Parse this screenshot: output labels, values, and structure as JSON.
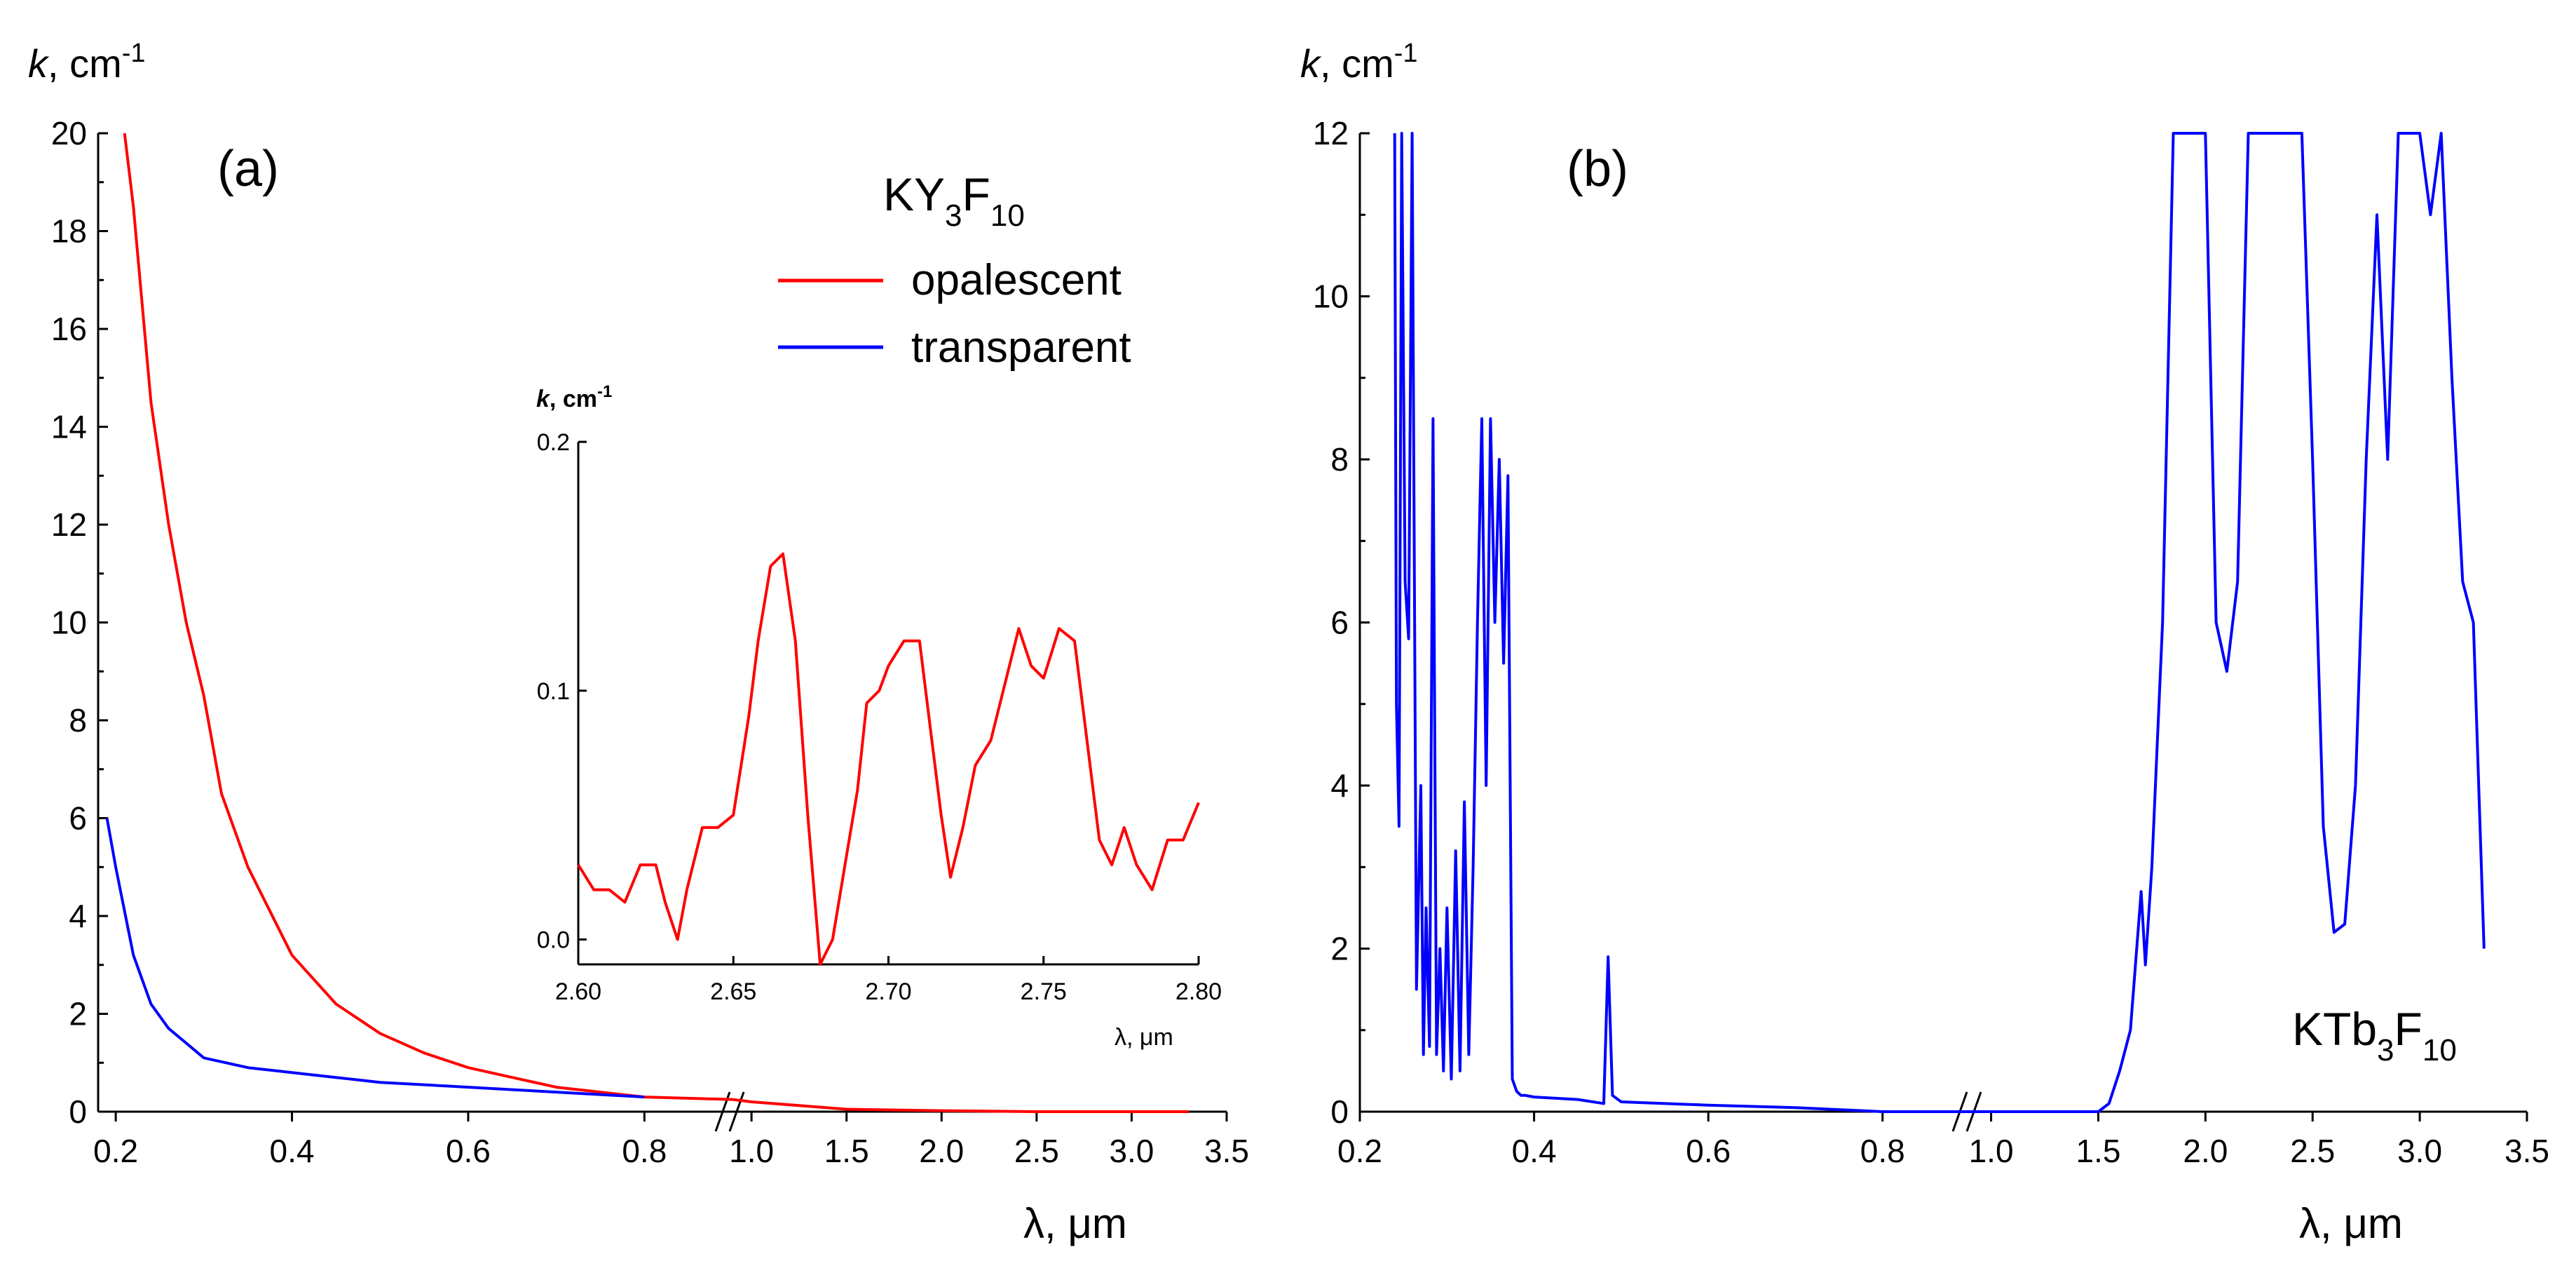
{
  "chart_data": [
    {
      "id": "a",
      "type": "line",
      "panel_label": "(a)",
      "title": "KY3F10",
      "title_parts": {
        "base": "KY",
        "sub1": "3",
        "mid": "F",
        "sub2": "10"
      },
      "xlabel": "λ, μm",
      "ylabel": {
        "var": "k",
        "unit": ", cm",
        "exp": "-1"
      },
      "ylim": [
        0,
        20
      ],
      "y_ticks": [
        "0",
        "2",
        "4",
        "6",
        "8",
        "10",
        "12",
        "14",
        "16",
        "18",
        "20"
      ],
      "broken_x_axis": true,
      "x_segments": [
        {
          "range": [
            0.18,
            0.9
          ],
          "ticks": [
            "0.2",
            "0.4",
            "0.6",
            "0.8"
          ]
        },
        {
          "range": [
            0.9,
            3.5
          ],
          "ticks": [
            "1.0",
            "1.5",
            "2.0",
            "2.5",
            "3.0",
            "3.5"
          ]
        }
      ],
      "legend_position": "top-right",
      "series": [
        {
          "name": "opalescent",
          "color": "#ff0000",
          "x": [
            0.21,
            0.22,
            0.24,
            0.26,
            0.28,
            0.3,
            0.32,
            0.35,
            0.4,
            0.45,
            0.5,
            0.55,
            0.6,
            0.65,
            0.7,
            0.75,
            0.8,
            0.9,
            1.0,
            1.5,
            2.0,
            2.5,
            3.0,
            3.3
          ],
          "y": [
            20,
            18.5,
            14.5,
            12.0,
            10.0,
            8.5,
            6.5,
            5.0,
            3.2,
            2.2,
            1.6,
            1.2,
            0.9,
            0.7,
            0.5,
            0.4,
            0.3,
            0.25,
            0.2,
            0.05,
            0.02,
            0.0,
            0.0,
            0.0
          ]
        },
        {
          "name": "transparent",
          "color": "#0000ff",
          "x": [
            0.19,
            0.2,
            0.22,
            0.24,
            0.26,
            0.28,
            0.3,
            0.35,
            0.4,
            0.45,
            0.5,
            0.55,
            0.6,
            0.65,
            0.7,
            0.75,
            0.8
          ],
          "y": [
            6.0,
            5.0,
            3.2,
            2.2,
            1.7,
            1.4,
            1.1,
            0.9,
            0.8,
            0.7,
            0.6,
            0.55,
            0.5,
            0.45,
            0.4,
            0.35,
            0.3
          ]
        }
      ],
      "inset": {
        "type": "line",
        "ylabel": {
          "var": "k",
          "unit": ", cm",
          "exp": "-1"
        },
        "xlabel": "λ, μm",
        "xlim": [
          2.6,
          2.8
        ],
        "ylim": [
          -0.01,
          0.2
        ],
        "x_ticks": [
          "2.60",
          "2.65",
          "2.70",
          "2.75",
          "2.80"
        ],
        "y_ticks": [
          "0.0",
          "0.1",
          "0.2"
        ],
        "series": [
          {
            "name": "opalescent",
            "color": "#ff0000",
            "x": [
              2.6,
              2.605,
              2.61,
              2.615,
              2.62,
              2.625,
              2.628,
              2.632,
              2.635,
              2.64,
              2.645,
              2.65,
              2.655,
              2.658,
              2.662,
              2.666,
              2.67,
              2.674,
              2.678,
              2.682,
              2.686,
              2.69,
              2.693,
              2.697,
              2.7,
              2.705,
              2.71,
              2.713,
              2.717,
              2.72,
              2.724,
              2.728,
              2.733,
              2.737,
              2.742,
              2.746,
              2.75,
              2.755,
              2.76,
              2.764,
              2.768,
              2.772,
              2.776,
              2.78,
              2.785,
              2.79,
              2.795,
              2.8
            ],
            "y": [
              0.03,
              0.02,
              0.02,
              0.015,
              0.03,
              0.03,
              0.015,
              0.0,
              0.02,
              0.045,
              0.045,
              0.05,
              0.09,
              0.12,
              0.15,
              0.155,
              0.12,
              0.05,
              -0.01,
              0.0,
              0.03,
              0.06,
              0.095,
              0.1,
              0.11,
              0.12,
              0.12,
              0.09,
              0.05,
              0.025,
              0.045,
              0.07,
              0.08,
              0.1,
              0.125,
              0.11,
              0.105,
              0.125,
              0.12,
              0.08,
              0.04,
              0.03,
              0.045,
              0.03,
              0.02,
              0.04,
              0.04,
              0.055
            ]
          }
        ]
      }
    },
    {
      "id": "b",
      "type": "line",
      "panel_label": "(b)",
      "title": "KTb3F10",
      "title_parts": {
        "base": "KTb",
        "sub1": "3",
        "mid": "F",
        "sub2": "10"
      },
      "xlabel": "λ, μm",
      "ylabel": {
        "var": "k",
        "unit": ", cm",
        "exp": "-1"
      },
      "ylim": [
        0,
        12
      ],
      "y_ticks": [
        "0",
        "2",
        "4",
        "6",
        "8",
        "10",
        "12"
      ],
      "broken_x_axis": true,
      "x_segments": [
        {
          "range": [
            0.2,
            0.9
          ],
          "ticks": [
            "0.2",
            "0.4",
            "0.6",
            "0.8"
          ]
        },
        {
          "range": [
            0.9,
            3.5
          ],
          "ticks": [
            "1.0",
            "1.5",
            "2.0",
            "2.5",
            "3.0",
            "3.5"
          ]
        }
      ],
      "series": [
        {
          "name": "KTb3F10",
          "color": "#0000ff",
          "x": [
            0.24,
            0.242,
            0.245,
            0.248,
            0.252,
            0.256,
            0.26,
            0.265,
            0.27,
            0.273,
            0.276,
            0.28,
            0.284,
            0.288,
            0.292,
            0.296,
            0.3,
            0.305,
            0.31,
            0.315,
            0.32,
            0.325,
            0.33,
            0.335,
            0.34,
            0.345,
            0.35,
            0.355,
            0.36,
            0.365,
            0.37,
            0.375,
            0.38,
            0.385,
            0.39,
            0.4,
            0.45,
            0.48,
            0.485,
            0.49,
            0.5,
            0.6,
            0.7,
            0.8,
            0.9,
            1.0,
            1.2,
            1.4,
            1.5,
            1.55,
            1.6,
            1.65,
            1.7,
            1.72,
            1.75,
            1.8,
            1.85,
            1.9,
            1.95,
            2.0,
            2.05,
            2.1,
            2.15,
            2.2,
            2.25,
            2.3,
            2.35,
            2.4,
            2.45,
            2.5,
            2.55,
            2.6,
            2.65,
            2.7,
            2.75,
            2.8,
            2.85,
            2.9,
            2.95,
            3.0,
            3.05,
            3.1,
            3.15,
            3.2,
            3.25,
            3.3
          ],
          "y": [
            12,
            5.0,
            3.5,
            12,
            6.5,
            5.8,
            12,
            1.5,
            4.0,
            0.7,
            2.5,
            0.8,
            8.5,
            0.7,
            2.0,
            0.5,
            2.5,
            0.4,
            3.2,
            0.5,
            3.8,
            0.7,
            3.0,
            6.0,
            8.5,
            4.0,
            8.5,
            6.0,
            8.0,
            5.5,
            7.8,
            0.4,
            0.25,
            0.2,
            0.2,
            0.18,
            0.15,
            0.1,
            1.9,
            0.2,
            0.12,
            0.08,
            0.05,
            0.0,
            0.0,
            0.0,
            0.0,
            0.0,
            0.0,
            0.1,
            0.5,
            1.0,
            2.7,
            1.8,
            3.0,
            6.0,
            12,
            12,
            12,
            12,
            6.0,
            5.4,
            6.5,
            12,
            12,
            12,
            12,
            12,
            12,
            8.0,
            3.5,
            2.2,
            2.3,
            4.0,
            8.0,
            11.0,
            8.0,
            12,
            12,
            12,
            11.0,
            12,
            9.0,
            6.5,
            6.0,
            2.0
          ]
        }
      ]
    }
  ]
}
